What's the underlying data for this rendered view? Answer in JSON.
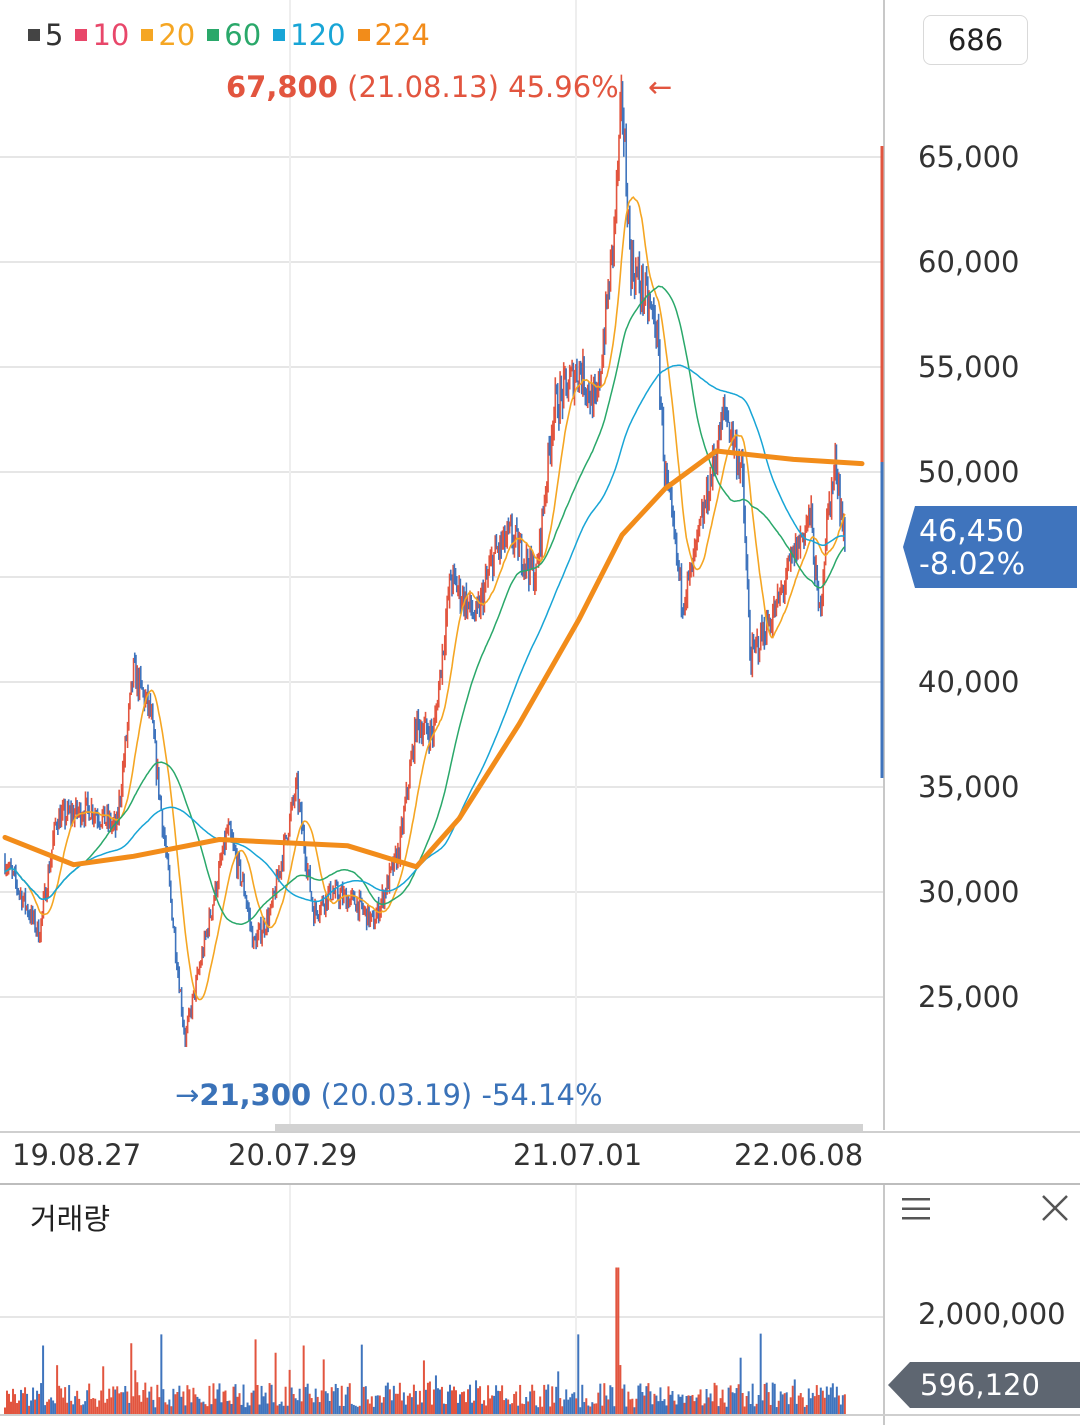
{
  "legend": [
    {
      "label": "5",
      "color": "#444444"
    },
    {
      "label": "10",
      "color": "#e8476a"
    },
    {
      "label": "20",
      "color": "#f5a623"
    },
    {
      "label": "60",
      "color": "#2aa86a"
    },
    {
      "label": "120",
      "color": "#18a5d6"
    },
    {
      "label": "224",
      "color": "#f28c1a"
    }
  ],
  "count_box": "686",
  "high_annotation": {
    "price": "67,800",
    "date": "(21.08.13)",
    "pct": "45.96%",
    "arrow": "←"
  },
  "low_annotation": {
    "arrow": "→",
    "price": "21,300",
    "date": "(20.03.19)",
    "pct": "-54.14%"
  },
  "current": {
    "price": "46,450",
    "change": "-8.02%"
  },
  "volume_panel": {
    "title": "거래량",
    "tick": "2,000,000",
    "current": "596,120"
  },
  "icons": {
    "menu": "menu-icon",
    "close": "close-icon"
  },
  "colors": {
    "up": "#e2553f",
    "down": "#3f74bd",
    "ma224": "#f28c1a",
    "grid": "#e6e6e6"
  },
  "chart_data": {
    "type": "line",
    "y_ticks": [
      "65,000",
      "60,000",
      "55,000",
      "50,000",
      "40,000",
      "35,000",
      "30,000",
      "25,000"
    ],
    "x_ticks": [
      "19.08.27",
      "20.07.29",
      "21.07.01",
      "22.06.08"
    ],
    "ylim": [
      20000,
      70000
    ],
    "series": [
      {
        "name": "224",
        "points": [
          [
            0,
            32600
          ],
          [
            0.08,
            31300
          ],
          [
            0.15,
            31700
          ],
          [
            0.25,
            32500
          ],
          [
            0.4,
            32200
          ],
          [
            0.48,
            31200
          ],
          [
            0.53,
            33500
          ],
          [
            0.6,
            38000
          ],
          [
            0.67,
            43000
          ],
          [
            0.72,
            47000
          ],
          [
            0.77,
            49200
          ],
          [
            0.83,
            51000
          ],
          [
            0.92,
            50600
          ],
          [
            1.0,
            50400
          ]
        ]
      },
      {
        "name": "price_close",
        "points": [
          [
            0,
            31500
          ],
          [
            0.04,
            28000
          ],
          [
            0.06,
            33500
          ],
          [
            0.1,
            34000
          ],
          [
            0.13,
            33000
          ],
          [
            0.15,
            40500
          ],
          [
            0.17,
            38500
          ],
          [
            0.19,
            31000
          ],
          [
            0.21,
            23000
          ],
          [
            0.23,
            27000
          ],
          [
            0.26,
            33000
          ],
          [
            0.28,
            30000
          ],
          [
            0.29,
            27500
          ],
          [
            0.31,
            29000
          ],
          [
            0.34,
            35000
          ],
          [
            0.36,
            29000
          ],
          [
            0.38,
            30000
          ],
          [
            0.41,
            29500
          ],
          [
            0.43,
            28500
          ],
          [
            0.46,
            32000
          ],
          [
            0.48,
            38000
          ],
          [
            0.5,
            37500
          ],
          [
            0.52,
            45000
          ],
          [
            0.55,
            43000
          ],
          [
            0.57,
            46000
          ],
          [
            0.59,
            47000
          ],
          [
            0.62,
            45000
          ],
          [
            0.64,
            53000
          ],
          [
            0.67,
            55000
          ],
          [
            0.69,
            53000
          ],
          [
            0.71,
            61000
          ],
          [
            0.72,
            67800
          ],
          [
            0.73,
            60000
          ],
          [
            0.75,
            58000
          ],
          [
            0.76,
            57000
          ],
          [
            0.77,
            50000
          ],
          [
            0.79,
            44000
          ],
          [
            0.8,
            45000
          ],
          [
            0.82,
            49000
          ],
          [
            0.84,
            53000
          ],
          [
            0.86,
            50000
          ],
          [
            0.87,
            41000
          ],
          [
            0.88,
            42000
          ],
          [
            0.9,
            43500
          ],
          [
            0.92,
            46000
          ],
          [
            0.94,
            48000
          ],
          [
            0.95,
            43000
          ],
          [
            0.96,
            48000
          ],
          [
            0.97,
            50500
          ],
          [
            0.98,
            46450
          ]
        ]
      }
    ],
    "volume": {
      "max_label": "2,000,000",
      "current": 596120
    }
  }
}
